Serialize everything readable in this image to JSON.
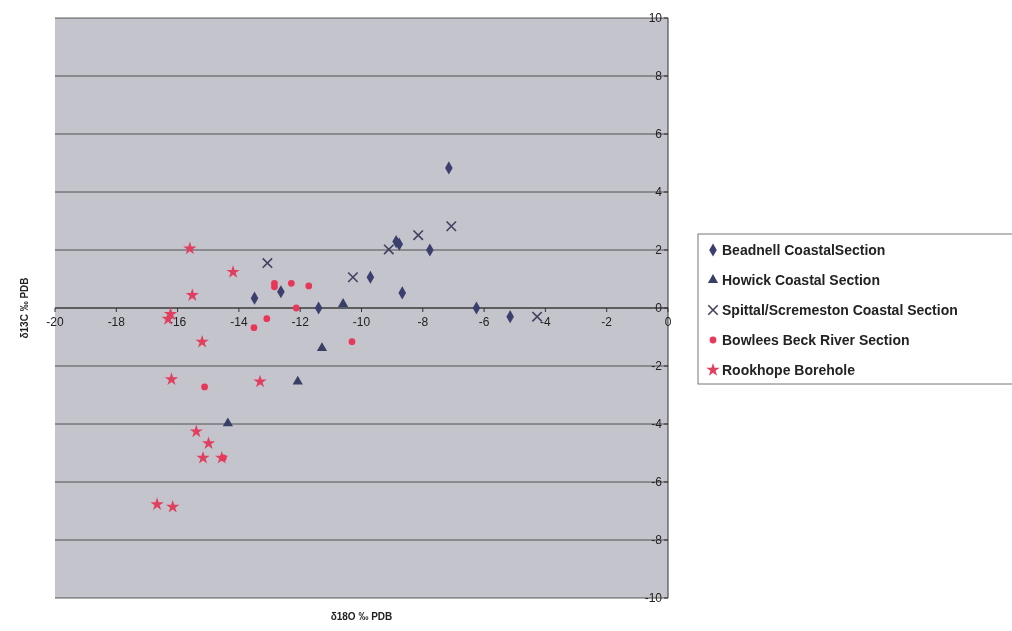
{
  "chart_data": {
    "type": "scatter",
    "xlabel": "δ18O ‰ PDB",
    "ylabel": "δ13C ‰ PDB",
    "xlim": [
      -20,
      0
    ],
    "ylim": [
      -10,
      10
    ],
    "xticks": [
      -20,
      -18,
      -16,
      -14,
      -12,
      -10,
      -8,
      -6,
      -4,
      -2,
      0
    ],
    "yticks": [
      -10,
      -8,
      -6,
      -4,
      -2,
      0,
      2,
      4,
      6,
      8,
      10
    ],
    "grid": "y",
    "legend": "right",
    "series": [
      {
        "name": "Beadnell CoastalSection",
        "color": "#3b3f6e",
        "marker": "diamond",
        "x": [
          -7.15,
          -8.87,
          -8.77,
          -7.77,
          -9.71,
          -8.67,
          -13.49,
          -12.63,
          -11.4,
          -6.25,
          -5.15
        ],
        "values": [
          4.83,
          2.29,
          2.2,
          2.0,
          1.06,
          0.52,
          0.34,
          0.56,
          0,
          0,
          -0.3
        ]
      },
      {
        "name": "Howick Coastal Section",
        "color": "#3a3f66",
        "marker": "triangle",
        "x": [
          -10.6,
          -11.29,
          -12.08,
          -14.36
        ],
        "values": [
          0.14,
          -1.38,
          -2.54,
          -3.98
        ]
      },
      {
        "name": "Spittal/Scremeston Coastal Section",
        "color": "#404060",
        "marker": "cross",
        "x": [
          -13.07,
          -10.28,
          -9.11,
          -8.15,
          -7.07,
          -4.27
        ],
        "values": [
          1.55,
          1.06,
          2.02,
          2.51,
          2.82,
          -0.3
        ]
      },
      {
        "name": "Bowlees Beck River Section",
        "color": "#e8385a",
        "marker": "circle",
        "x": [
          -12.84,
          -12.84,
          -12.29,
          -11.72,
          -12.13,
          -13.09,
          -13.51,
          -10.31,
          -15.12,
          -14.51
        ],
        "values": [
          0.85,
          0.73,
          0.85,
          0.76,
          0,
          -0.37,
          -0.68,
          -1.16,
          -2.72,
          -5.17
        ]
      },
      {
        "name": "Rookhope Borehole",
        "color": "#e04060",
        "marker": "star",
        "x": [
          -15.6,
          -14.19,
          -15.52,
          -16.23,
          -16.31,
          -15.2,
          -16.2,
          -13.31,
          -15.39,
          -14.99,
          -15.17,
          -14.56,
          -16.67,
          -16.16
        ],
        "values": [
          2.05,
          1.24,
          0.44,
          -0.21,
          -0.38,
          -1.17,
          -2.46,
          -2.54,
          -4.26,
          -4.67,
          -5.17,
          -5.17,
          -6.77,
          -6.86
        ]
      }
    ]
  }
}
